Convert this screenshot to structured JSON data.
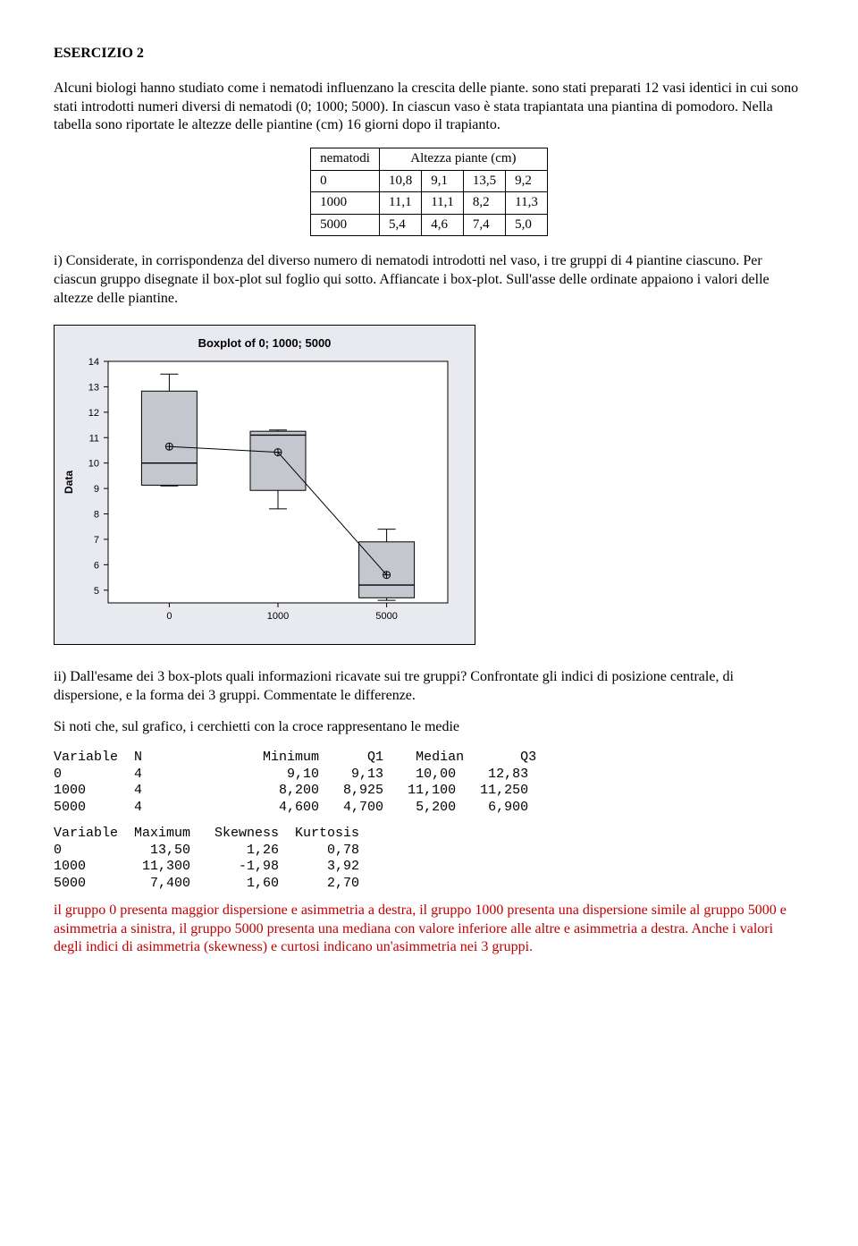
{
  "title": "ESERCIZIO 2",
  "intro": "Alcuni biologi hanno studiato come i nematodi influenzano la crescita delle piante. sono stati preparati 12 vasi identici in cui sono stati introdotti numeri diversi di nematodi (0;  1000;  5000). In ciascun vaso è stata trapiantata una piantina di pomodoro. Nella tabella sono riportate le altezze delle piantine (cm) 16 giorni dopo il trapianto.",
  "table": {
    "header_left": "nematodi",
    "header_right": "Altezza piante (cm)",
    "rows": [
      [
        "0",
        "10,8",
        "9,1",
        "13,5",
        "9,2"
      ],
      [
        "1000",
        "11,1",
        "11,1",
        "8,2",
        "11,3"
      ],
      [
        "5000",
        "5,4",
        "4,6",
        "7,4",
        "5,0"
      ]
    ]
  },
  "q1": "i)  Considerate, in corrispondenza del diverso numero di nematodi introdotti nel vaso, i tre gruppi di 4 piantine ciascuno. Per ciascun gruppo disegnate il box-plot sul foglio qui sotto. Affiancate i box-plot. Sull'asse delle ordinate appaiono i valori delle altezze delle piantine.",
  "chart": {
    "type": "boxplot",
    "title": "Boxplot of 0; 1000; 5000",
    "title_fontsize": 13,
    "bg_panel": "#e9eaef",
    "bg_plot": "#ffffff",
    "axis_color": "#000000",
    "box_fill": "#c5c7cf",
    "box_stroke": "#000000",
    "line_color": "#000000",
    "ylabel": "Data",
    "ylim": [
      5,
      14
    ],
    "yticks": [
      5,
      6,
      7,
      8,
      9,
      10,
      11,
      12,
      13,
      14
    ],
    "xticks": [
      "0",
      "1000",
      "5000"
    ],
    "groups": [
      {
        "x": 0,
        "min": 9.1,
        "q1": 9.13,
        "median": 10.0,
        "q3": 12.83,
        "max": 13.5,
        "mean": 10.65
      },
      {
        "x": 1000,
        "min": 8.2,
        "q1": 8.925,
        "median": 11.1,
        "q3": 11.25,
        "max": 11.3,
        "mean": 10.425
      },
      {
        "x": 5000,
        "min": 4.6,
        "q1": 4.7,
        "median": 5.2,
        "q3": 6.9,
        "max": 7.4,
        "mean": 5.6
      }
    ]
  },
  "q2": "ii)  Dall'esame dei 3 box-plots quali informazioni ricavate sui tre gruppi? Confrontate gli indici di posizione centrale, di dispersione, e la forma dei 3 gruppi. Commentate le differenze.",
  "note": "Si noti che, sul grafico, i cerchietti con la croce rappresentano le medie",
  "stats1_lines": [
    "Variable  N               Minimum      Q1    Median       Q3",
    "0         4                  9,10    9,13    10,00    12,83",
    "1000      4                 8,200   8,925   11,100   11,250",
    "5000      4                 4,600   4,700    5,200    6,900"
  ],
  "stats2_lines": [
    "Variable  Maximum   Skewness  Kurtosis",
    "0           13,50       1,26      0,78",
    "1000       11,300      -1,98      3,92",
    "5000        7,400       1,60      2,70"
  ],
  "red1": "il gruppo 0 presenta maggior dispersione e asimmetria a destra,   il gruppo 1000 presenta una dispersione simile al gruppo 5000 e asimmetria a sinistra,  il gruppo 5000 presenta una mediana con valore inferiore alle altre e asimmetria a destra. ",
  "red2": "Anche i valori degli indici di asimmetria (skewness) e curtosi indicano un'asimmetria nei 3 gruppi."
}
